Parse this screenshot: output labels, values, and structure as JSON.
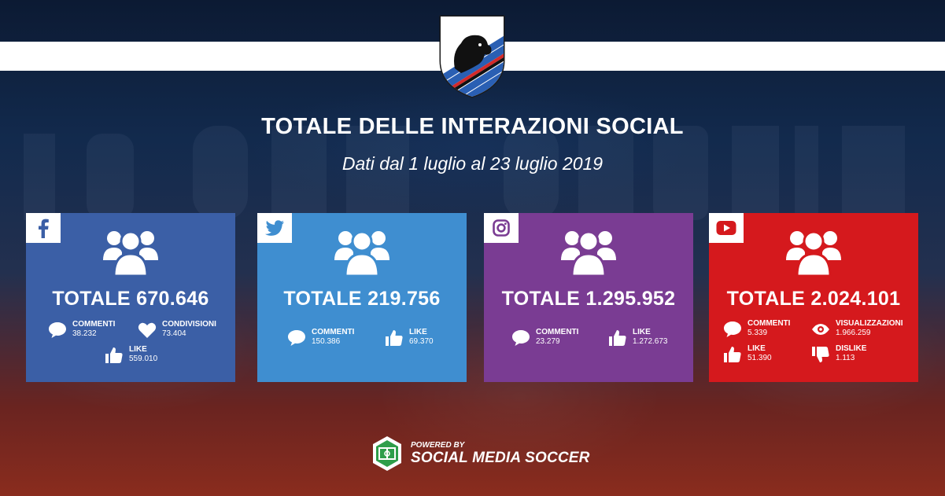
{
  "header": {
    "title": "TOTALE DELLE INTERAZIONI SOCIAL",
    "subtitle": "Dati dal 1 luglio al 23 luglio 2019"
  },
  "colors": {
    "facebook": "#3b5fa6",
    "twitter": "#3f8ed0",
    "instagram": "#7a3c93",
    "youtube": "#d5191d"
  },
  "cards": {
    "facebook": {
      "icon": "facebook-icon",
      "total": "TOTALE 670.646",
      "commenti_label": "COMMENTI",
      "commenti_value": "38.232",
      "condivisioni_label": "CONDIVISIONI",
      "condivisioni_value": "73.404",
      "like_label": "LIKE",
      "like_value": "559.010"
    },
    "twitter": {
      "icon": "twitter-icon",
      "total": "TOTALE 219.756",
      "commenti_label": "COMMENTI",
      "commenti_value": "150.386",
      "like_label": "LIKE",
      "like_value": "69.370"
    },
    "instagram": {
      "icon": "instagram-icon",
      "total": "TOTALE 1.295.952",
      "commenti_label": "COMMENTI",
      "commenti_value": "23.279",
      "like_label": "LIKE",
      "like_value": "1.272.673"
    },
    "youtube": {
      "icon": "youtube-icon",
      "total": "TOTALE 2.024.101",
      "commenti_label": "COMMENTI",
      "commenti_value": "5.339",
      "visualizzazioni_label": "VISUALIZZAZIONI",
      "visualizzazioni_value": "1.966.259",
      "like_label": "LIKE",
      "like_value": "51.390",
      "dislike_label": "DISLIKE",
      "dislike_value": "1.113"
    }
  },
  "footer": {
    "powered_by": "POWERED BY",
    "brand": "SOCIAL MEDIA SOCCER"
  }
}
